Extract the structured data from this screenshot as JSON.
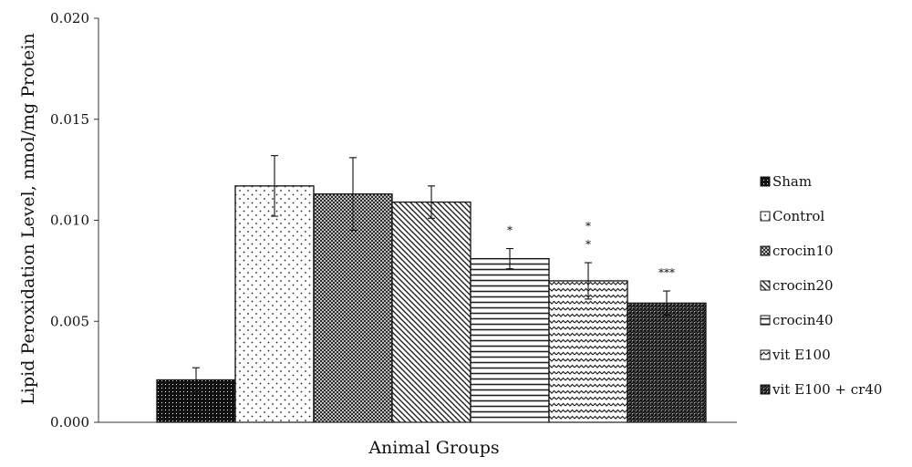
{
  "chart_data": {
    "type": "bar",
    "title": "",
    "xlabel": "Animal Groups",
    "ylabel": "Lipid Peroxidation Level, nmol/mg Protein",
    "ylim": [
      0,
      0.02
    ],
    "yticks": [
      "0.000",
      "0.005",
      "0.010",
      "0.015",
      "0.020"
    ],
    "grid": false,
    "legend_position": "right",
    "series": [
      {
        "name": "Sham",
        "value": 0.0021,
        "error": 0.0006,
        "significance": "",
        "pattern": "dense-dots"
      },
      {
        "name": "Control",
        "value": 0.0117,
        "error": 0.0015,
        "significance": "",
        "pattern": "sparse-dots"
      },
      {
        "name": "crocin10",
        "value": 0.0113,
        "error": 0.0018,
        "significance": "",
        "pattern": "crosshatch"
      },
      {
        "name": "crocin20",
        "value": 0.0109,
        "error": 0.0008,
        "significance": "",
        "pattern": "diagonal"
      },
      {
        "name": "crocin40",
        "value": 0.0081,
        "error": 0.0005,
        "significance": "*",
        "pattern": "horizontal"
      },
      {
        "name": "vit E100",
        "value": 0.007,
        "error": 0.0009,
        "significance": "*\n*",
        "pattern": "wave"
      },
      {
        "name": "vit E100 + cr40",
        "value": 0.0059,
        "error": 0.0006,
        "significance": "***",
        "pattern": "grid"
      }
    ]
  }
}
